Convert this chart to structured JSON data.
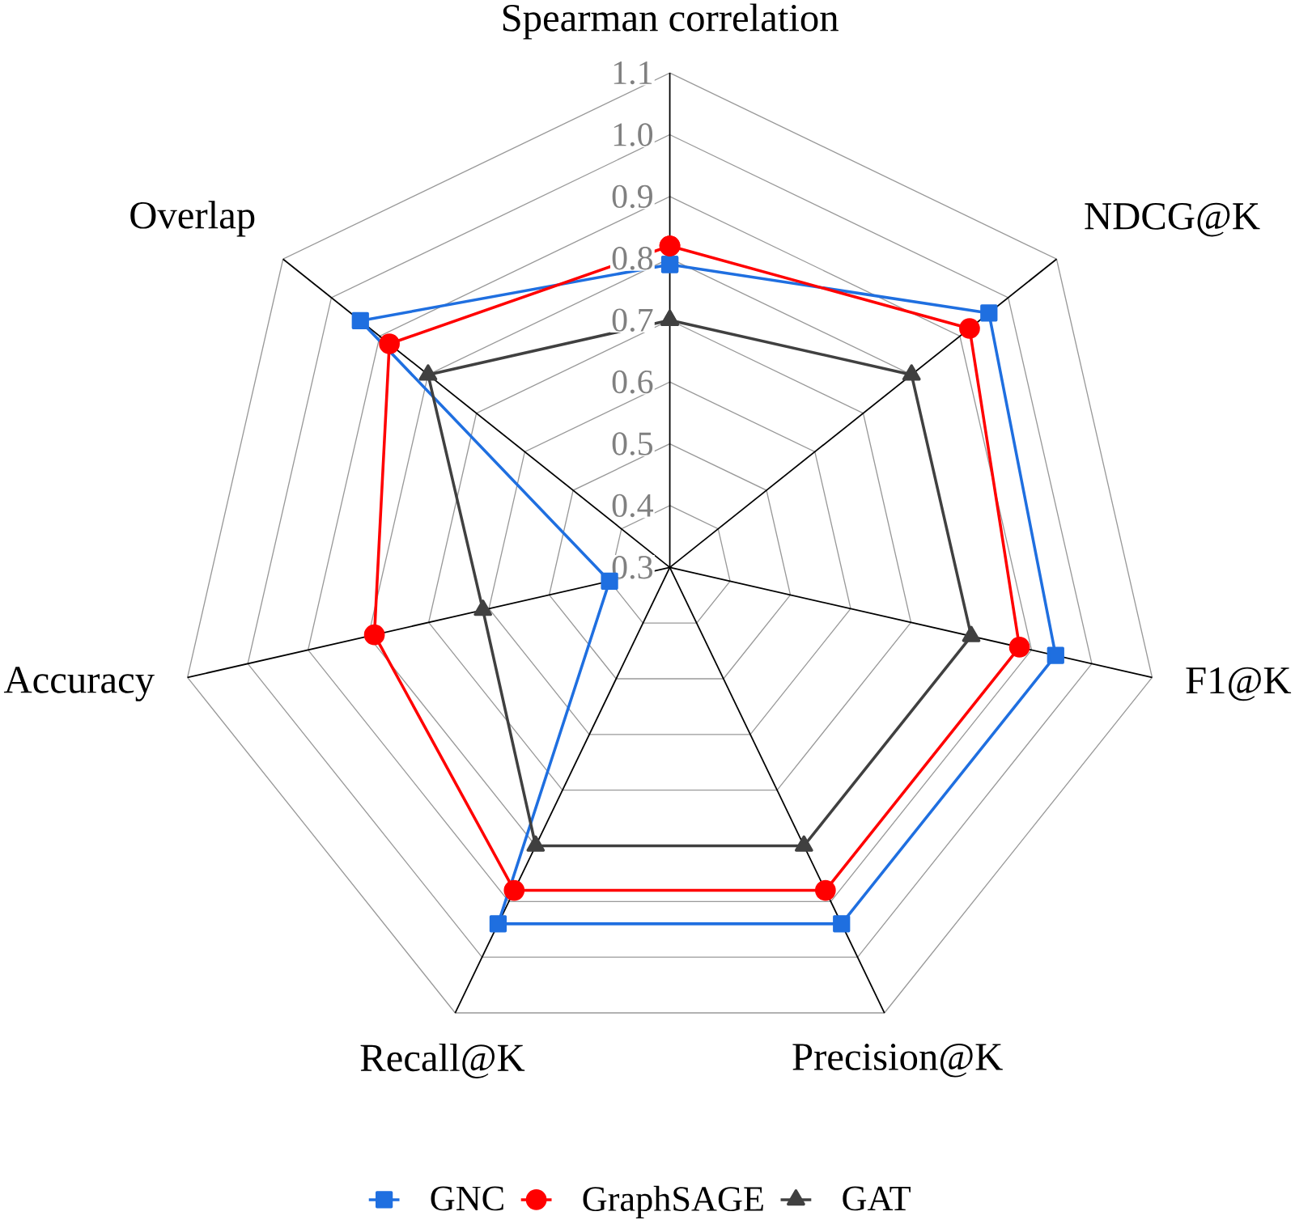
{
  "chart_data": {
    "type": "radar",
    "categories": [
      "Spearman correlation",
      "NDCG@K",
      "F1@K",
      "Precision@K",
      "Recall@K",
      "Accuracy",
      "Overlap"
    ],
    "series": [
      {
        "name": "GNC",
        "color": "#1f6fe0",
        "marker": "square",
        "values": [
          0.79,
          0.96,
          0.94,
          0.94,
          0.94,
          0.4,
          0.94
        ]
      },
      {
        "name": "GraphSAGE",
        "color": "#ff0000",
        "marker": "circle",
        "values": [
          0.82,
          0.92,
          0.88,
          0.88,
          0.88,
          0.79,
          0.88
        ]
      },
      {
        "name": "GAT",
        "color": "#404040",
        "marker": "triangle",
        "values": [
          0.7,
          0.8,
          0.8,
          0.8,
          0.8,
          0.61,
          0.8
        ]
      }
    ],
    "ylim": [
      0.3,
      1.1
    ],
    "yticks": [
      0.3,
      0.4,
      0.5,
      0.6,
      0.7,
      0.8,
      0.9,
      {
        "value": 1,
        "label": "1.0"
      },
      1.1
    ],
    "grid": true,
    "legend": "bottom"
  }
}
